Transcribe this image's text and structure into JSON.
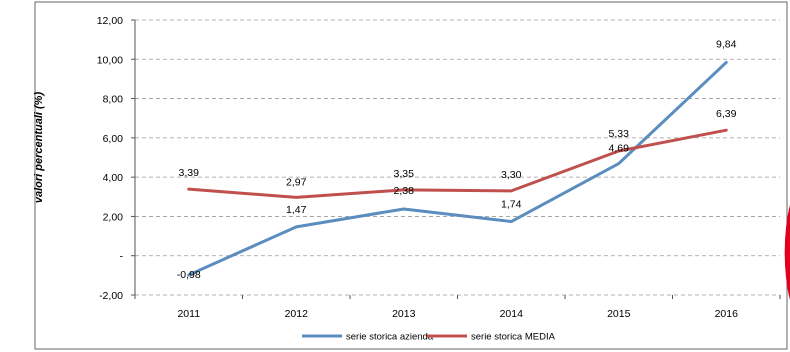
{
  "chart_data": {
    "type": "line",
    "ylabel": "valori percentuali (%)",
    "categories": [
      "2011",
      "2012",
      "2013",
      "2014",
      "2015",
      "2016"
    ],
    "ylim": [
      -2,
      12
    ],
    "y_ticks": [
      -2,
      0,
      2,
      4,
      6,
      8,
      10,
      12
    ],
    "y_tick_labels": [
      "-2,00",
      "-",
      "2,00",
      "4,00",
      "6,00",
      "8,00",
      "10,00",
      "12,00"
    ],
    "grid": true,
    "legend_position": "bottom",
    "series": [
      {
        "name": "serie storica azienda",
        "color": "#5b8dbf",
        "values": [
          -0.98,
          1.47,
          2.38,
          1.74,
          4.69,
          9.84
        ],
        "labels": [
          "-0,98",
          "1,47",
          "2,38",
          "1,74",
          "4,69",
          "9,84"
        ]
      },
      {
        "name": "serie storica MEDIA",
        "color": "#c0504d",
        "values": [
          3.39,
          2.97,
          3.35,
          3.3,
          5.33,
          6.39
        ],
        "labels": [
          "3,39",
          "2,97",
          "3,35",
          "3,30",
          "5,33",
          "6,39"
        ]
      }
    ]
  },
  "colors": {
    "grid": "#9a9a9a",
    "frame": "#666666",
    "marker_accent": "#e0001b"
  }
}
